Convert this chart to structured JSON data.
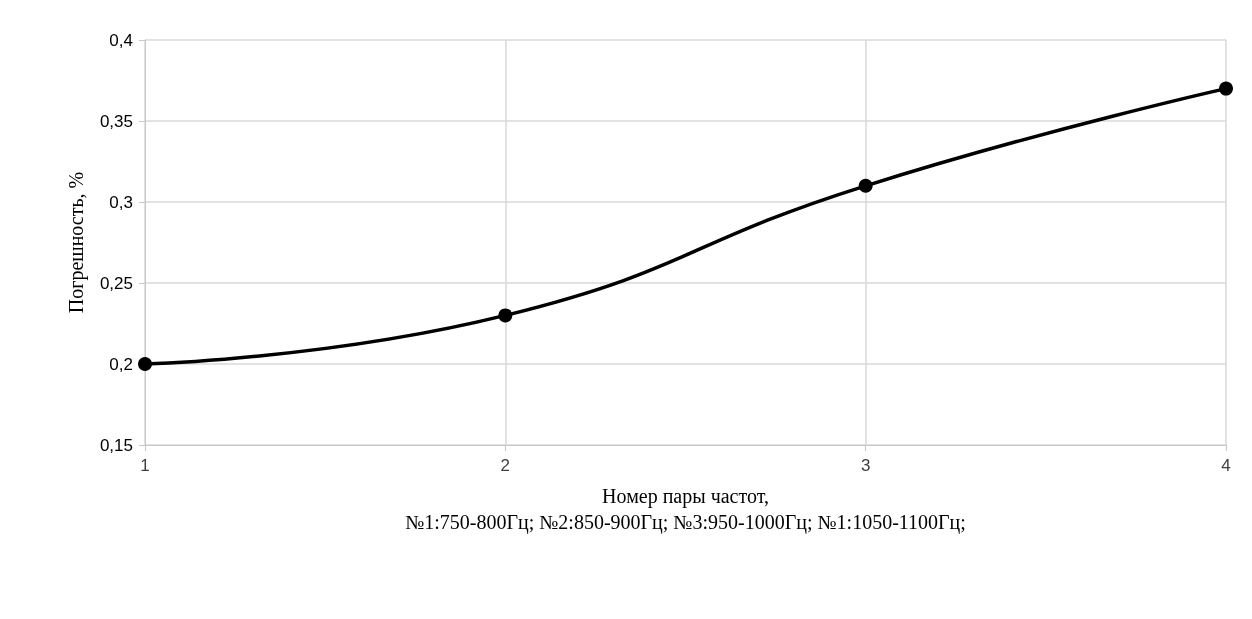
{
  "chart_data": {
    "type": "line",
    "xlabel": "Номер пары частот,\n№1:750-800Гц; №2:850-900Гц; №3:950-1000Гц; №1:1050-1100Гц;",
    "ylabel": "Погрешность, %",
    "x": [
      1,
      2,
      3,
      4
    ],
    "series": [
      {
        "color": "#000000",
        "values": [
          0.2,
          0.23,
          0.31,
          0.37
        ]
      }
    ],
    "xlim": [
      1,
      4
    ],
    "xticks": [
      1,
      2,
      3,
      4
    ],
    "ylim": [
      0.15,
      0.4
    ],
    "yticks": [
      {
        "value": 0.15,
        "label": "0,15"
      },
      {
        "value": 0.2,
        "label": "0,2"
      },
      {
        "value": 0.25,
        "label": "0,25"
      },
      {
        "value": 0.3,
        "label": "0,3"
      },
      {
        "value": 0.35,
        "label": "0,35"
      },
      {
        "value": 0.4,
        "label": "0,4"
      }
    ],
    "grid": true,
    "marker": "circle",
    "line_style": "solid"
  }
}
